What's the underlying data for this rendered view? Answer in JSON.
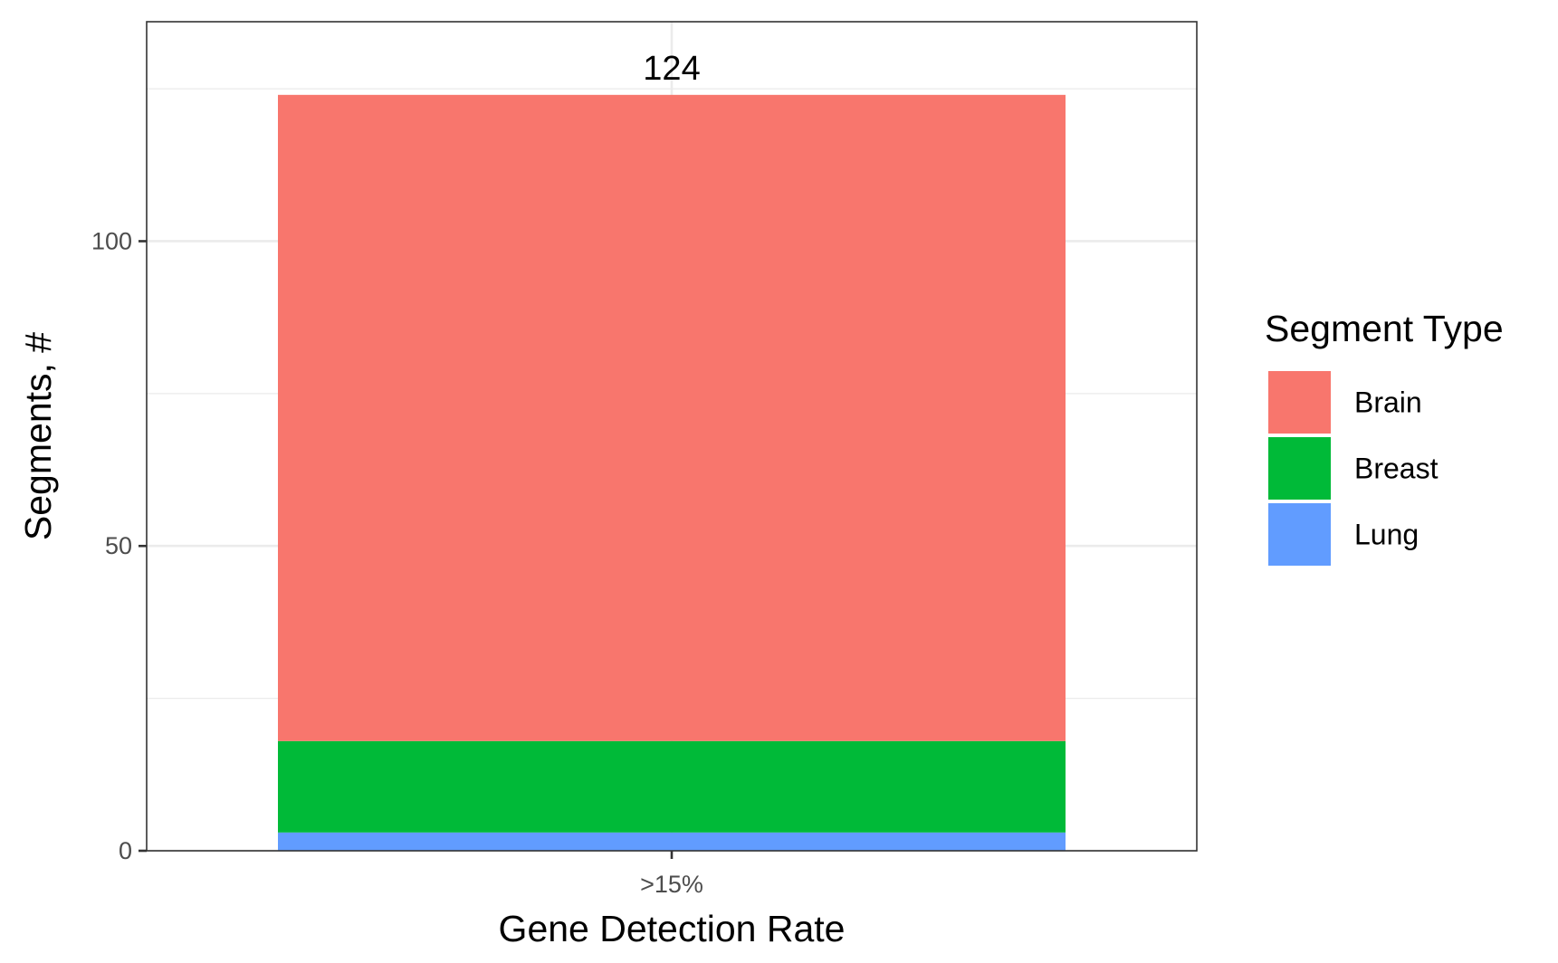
{
  "chart_data": {
    "type": "bar",
    "stacked": true,
    "categories": [
      ">15%"
    ],
    "series": [
      {
        "name": "Lung",
        "values": [
          3
        ],
        "color": "#619CFF"
      },
      {
        "name": "Breast",
        "values": [
          15
        ],
        "color": "#00BA38"
      },
      {
        "name": "Brain",
        "values": [
          106
        ],
        "color": "#F8766D"
      }
    ],
    "total_labels": [
      "124"
    ],
    "totals": [
      124
    ],
    "xlabel": "Gene Detection Rate",
    "ylabel": "Segments, #",
    "ylim": [
      0,
      136
    ],
    "y_ticks": [
      0,
      50,
      100
    ],
    "y_tick_labels": [
      "0",
      "50",
      "100"
    ],
    "y_minor_ticks": [
      25,
      75,
      125
    ],
    "grid": true,
    "legend": {
      "title": "Segment Type",
      "position": "right",
      "items": [
        {
          "label": "Brain",
          "color": "#F8766D"
        },
        {
          "label": "Breast",
          "color": "#00BA38"
        },
        {
          "label": "Lung",
          "color": "#619CFF"
        }
      ]
    }
  }
}
